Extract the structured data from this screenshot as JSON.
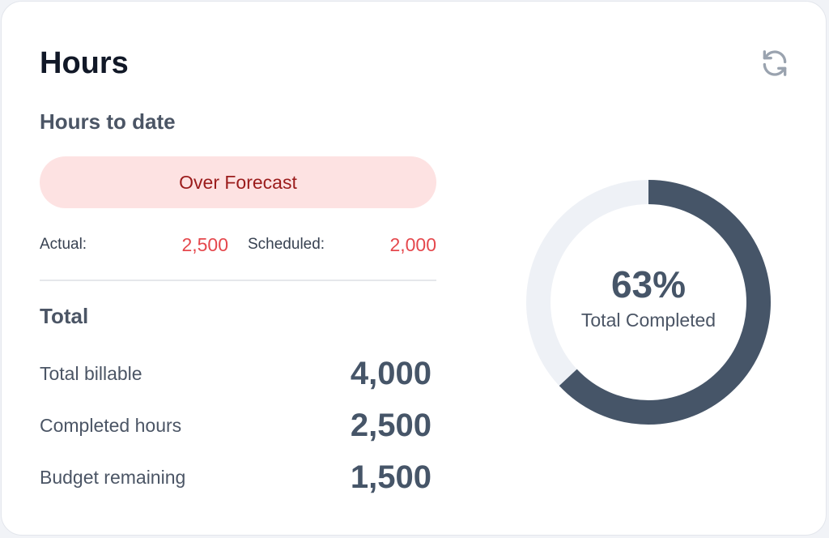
{
  "header": {
    "title": "Hours",
    "refresh_icon": "refresh-icon"
  },
  "hours_to_date": {
    "title": "Hours to date",
    "status": "Over Forecast",
    "actual_label": "Actual:",
    "actual_value": "2,500",
    "scheduled_label": "Scheduled:",
    "scheduled_value": "2,000"
  },
  "total": {
    "title": "Total",
    "rows": [
      {
        "label": "Total billable",
        "value": "4,000"
      },
      {
        "label": "Completed hours",
        "value": "2,500"
      },
      {
        "label": "Budget remaining",
        "value": "1,500"
      }
    ]
  },
  "progress": {
    "percent_text": "63%",
    "caption": "Total Completed",
    "fraction": 0.63
  },
  "colors": {
    "progress": "#465568",
    "track": "#eef1f6",
    "over_forecast_bg": "#fde2e2",
    "over_forecast_text": "#9b1c1c",
    "alert_value": "#e5484d"
  }
}
